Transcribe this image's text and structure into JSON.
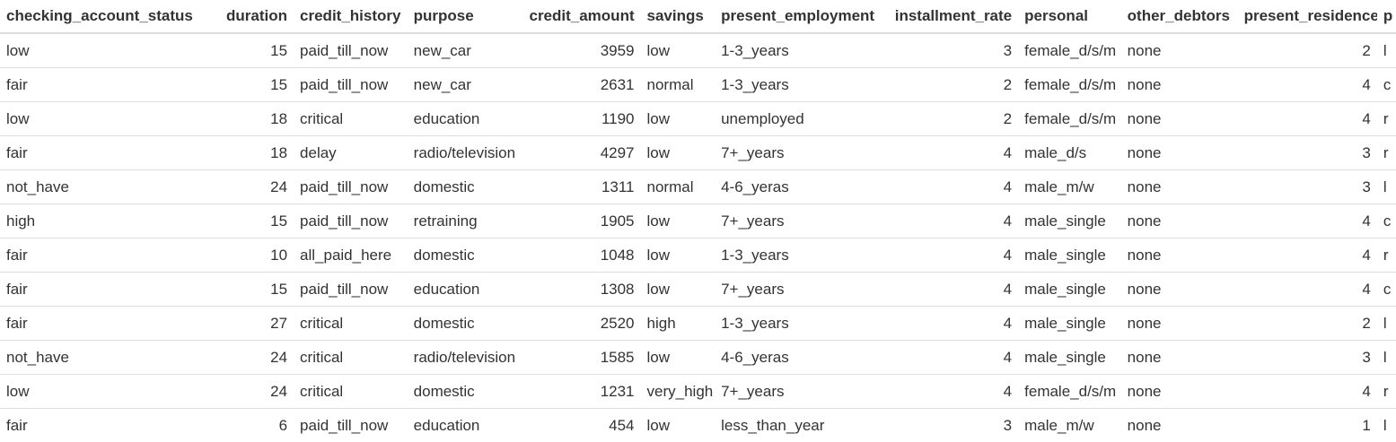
{
  "table": {
    "columns": [
      {
        "label": "checking_account_status",
        "align": "left"
      },
      {
        "label": "duration",
        "align": "right"
      },
      {
        "label": "credit_history",
        "align": "left"
      },
      {
        "label": "purpose",
        "align": "left"
      },
      {
        "label": "credit_amount",
        "align": "right"
      },
      {
        "label": "savings",
        "align": "left"
      },
      {
        "label": "present_employment",
        "align": "left"
      },
      {
        "label": "installment_rate",
        "align": "right"
      },
      {
        "label": "personal",
        "align": "left"
      },
      {
        "label": "other_debtors",
        "align": "left"
      },
      {
        "label": "present_residence",
        "align": "right"
      },
      {
        "label": "p",
        "align": "left"
      }
    ],
    "rows": [
      [
        "low",
        "15",
        "paid_till_now",
        "new_car",
        "3959",
        "low",
        "1-3_years",
        "3",
        "female_d/s/m",
        "none",
        "2",
        "l"
      ],
      [
        "fair",
        "15",
        "paid_till_now",
        "new_car",
        "2631",
        "normal",
        "1-3_years",
        "2",
        "female_d/s/m",
        "none",
        "4",
        "c"
      ],
      [
        "low",
        "18",
        "critical",
        "education",
        "1190",
        "low",
        "unemployed",
        "2",
        "female_d/s/m",
        "none",
        "4",
        "r"
      ],
      [
        "fair",
        "18",
        "delay",
        "radio/television",
        "4297",
        "low",
        "7+_years",
        "4",
        "male_d/s",
        "none",
        "3",
        "r"
      ],
      [
        "not_have",
        "24",
        "paid_till_now",
        "domestic",
        "1311",
        "normal",
        "4-6_yeras",
        "4",
        "male_m/w",
        "none",
        "3",
        "l"
      ],
      [
        "high",
        "15",
        "paid_till_now",
        "retraining",
        "1905",
        "low",
        "7+_years",
        "4",
        "male_single",
        "none",
        "4",
        "c"
      ],
      [
        "fair",
        "10",
        "all_paid_here",
        "domestic",
        "1048",
        "low",
        "1-3_years",
        "4",
        "male_single",
        "none",
        "4",
        "r"
      ],
      [
        "fair",
        "15",
        "paid_till_now",
        "education",
        "1308",
        "low",
        "7+_years",
        "4",
        "male_single",
        "none",
        "4",
        "c"
      ],
      [
        "fair",
        "27",
        "critical",
        "domestic",
        "2520",
        "high",
        "1-3_years",
        "4",
        "male_single",
        "none",
        "2",
        "l"
      ],
      [
        "not_have",
        "24",
        "critical",
        "radio/television",
        "1585",
        "low",
        "4-6_yeras",
        "4",
        "male_single",
        "none",
        "3",
        "l"
      ],
      [
        "low",
        "24",
        "critical",
        "domestic",
        "1231",
        "very_high",
        "7+_years",
        "4",
        "female_d/s/m",
        "none",
        "4",
        "r"
      ],
      [
        "fair",
        "6",
        "paid_till_now",
        "education",
        "454",
        "low",
        "less_than_year",
        "3",
        "male_m/w",
        "none",
        "1",
        "l"
      ]
    ]
  }
}
